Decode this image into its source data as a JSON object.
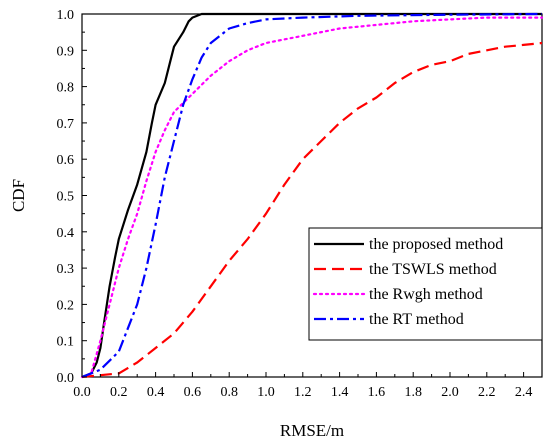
{
  "chart_data": {
    "type": "line",
    "title": "",
    "xlabel": "RMSE/m",
    "ylabel": "CDF",
    "xlim": [
      0,
      2.5
    ],
    "ylim": [
      0,
      1.0
    ],
    "xticks": [
      "0.0",
      "0.2",
      "0.4",
      "0.6",
      "0.8",
      "1.0",
      "1.2",
      "1.4",
      "1.6",
      "1.8",
      "2.0",
      "2.2",
      "2.4"
    ],
    "yticks": [
      "0.0",
      "0.1",
      "0.2",
      "0.3",
      "0.4",
      "0.5",
      "0.6",
      "0.7",
      "0.8",
      "0.9",
      "1.0"
    ],
    "grid": false,
    "legend_position": "bottom-right",
    "series": [
      {
        "name": "the proposed method",
        "color": "#000000",
        "style": "solid",
        "points": [
          [
            0,
            0
          ],
          [
            0.05,
            0.01
          ],
          [
            0.08,
            0.04
          ],
          [
            0.1,
            0.08
          ],
          [
            0.12,
            0.15
          ],
          [
            0.15,
            0.25
          ],
          [
            0.18,
            0.33
          ],
          [
            0.2,
            0.38
          ],
          [
            0.25,
            0.46
          ],
          [
            0.3,
            0.53
          ],
          [
            0.35,
            0.62
          ],
          [
            0.38,
            0.7
          ],
          [
            0.4,
            0.75
          ],
          [
            0.45,
            0.81
          ],
          [
            0.48,
            0.87
          ],
          [
            0.5,
            0.91
          ],
          [
            0.55,
            0.95
          ],
          [
            0.58,
            0.98
          ],
          [
            0.6,
            0.99
          ],
          [
            0.65,
            1.0
          ],
          [
            2.5,
            1.0
          ]
        ]
      },
      {
        "name": "the TSWLS method",
        "color": "#ff0000",
        "style": "dashed",
        "points": [
          [
            0,
            0
          ],
          [
            0.1,
            0.005
          ],
          [
            0.2,
            0.01
          ],
          [
            0.3,
            0.04
          ],
          [
            0.4,
            0.08
          ],
          [
            0.5,
            0.12
          ],
          [
            0.6,
            0.18
          ],
          [
            0.7,
            0.25
          ],
          [
            0.8,
            0.32
          ],
          [
            0.9,
            0.38
          ],
          [
            1.0,
            0.45
          ],
          [
            1.1,
            0.53
          ],
          [
            1.2,
            0.6
          ],
          [
            1.3,
            0.65
          ],
          [
            1.4,
            0.7
          ],
          [
            1.5,
            0.74
          ],
          [
            1.6,
            0.77
          ],
          [
            1.7,
            0.81
          ],
          [
            1.8,
            0.84
          ],
          [
            1.9,
            0.86
          ],
          [
            2.0,
            0.87
          ],
          [
            2.1,
            0.89
          ],
          [
            2.2,
            0.9
          ],
          [
            2.3,
            0.91
          ],
          [
            2.4,
            0.915
          ],
          [
            2.5,
            0.92
          ]
        ]
      },
      {
        "name": "the Rwgh method",
        "color": "#ff00ff",
        "style": "dotted",
        "points": [
          [
            0,
            0
          ],
          [
            0.05,
            0.01
          ],
          [
            0.1,
            0.1
          ],
          [
            0.15,
            0.2
          ],
          [
            0.2,
            0.3
          ],
          [
            0.25,
            0.38
          ],
          [
            0.3,
            0.45
          ],
          [
            0.35,
            0.54
          ],
          [
            0.4,
            0.62
          ],
          [
            0.45,
            0.68
          ],
          [
            0.5,
            0.73
          ],
          [
            0.6,
            0.78
          ],
          [
            0.7,
            0.83
          ],
          [
            0.8,
            0.87
          ],
          [
            0.9,
            0.9
          ],
          [
            1.0,
            0.92
          ],
          [
            1.2,
            0.94
          ],
          [
            1.4,
            0.96
          ],
          [
            1.6,
            0.97
          ],
          [
            1.8,
            0.98
          ],
          [
            2.0,
            0.985
          ],
          [
            2.2,
            0.99
          ],
          [
            2.5,
            0.99
          ]
        ]
      },
      {
        "name": "the RT method",
        "color": "#0000ff",
        "style": "dashdot",
        "points": [
          [
            0,
            0
          ],
          [
            0.1,
            0.02
          ],
          [
            0.2,
            0.07
          ],
          [
            0.3,
            0.2
          ],
          [
            0.35,
            0.3
          ],
          [
            0.4,
            0.42
          ],
          [
            0.45,
            0.55
          ],
          [
            0.5,
            0.65
          ],
          [
            0.55,
            0.75
          ],
          [
            0.6,
            0.82
          ],
          [
            0.65,
            0.88
          ],
          [
            0.7,
            0.92
          ],
          [
            0.8,
            0.96
          ],
          [
            0.9,
            0.975
          ],
          [
            1.0,
            0.985
          ],
          [
            1.2,
            0.99
          ],
          [
            1.5,
            0.995
          ],
          [
            2.0,
            0.998
          ],
          [
            2.5,
            1.0
          ]
        ]
      }
    ]
  }
}
